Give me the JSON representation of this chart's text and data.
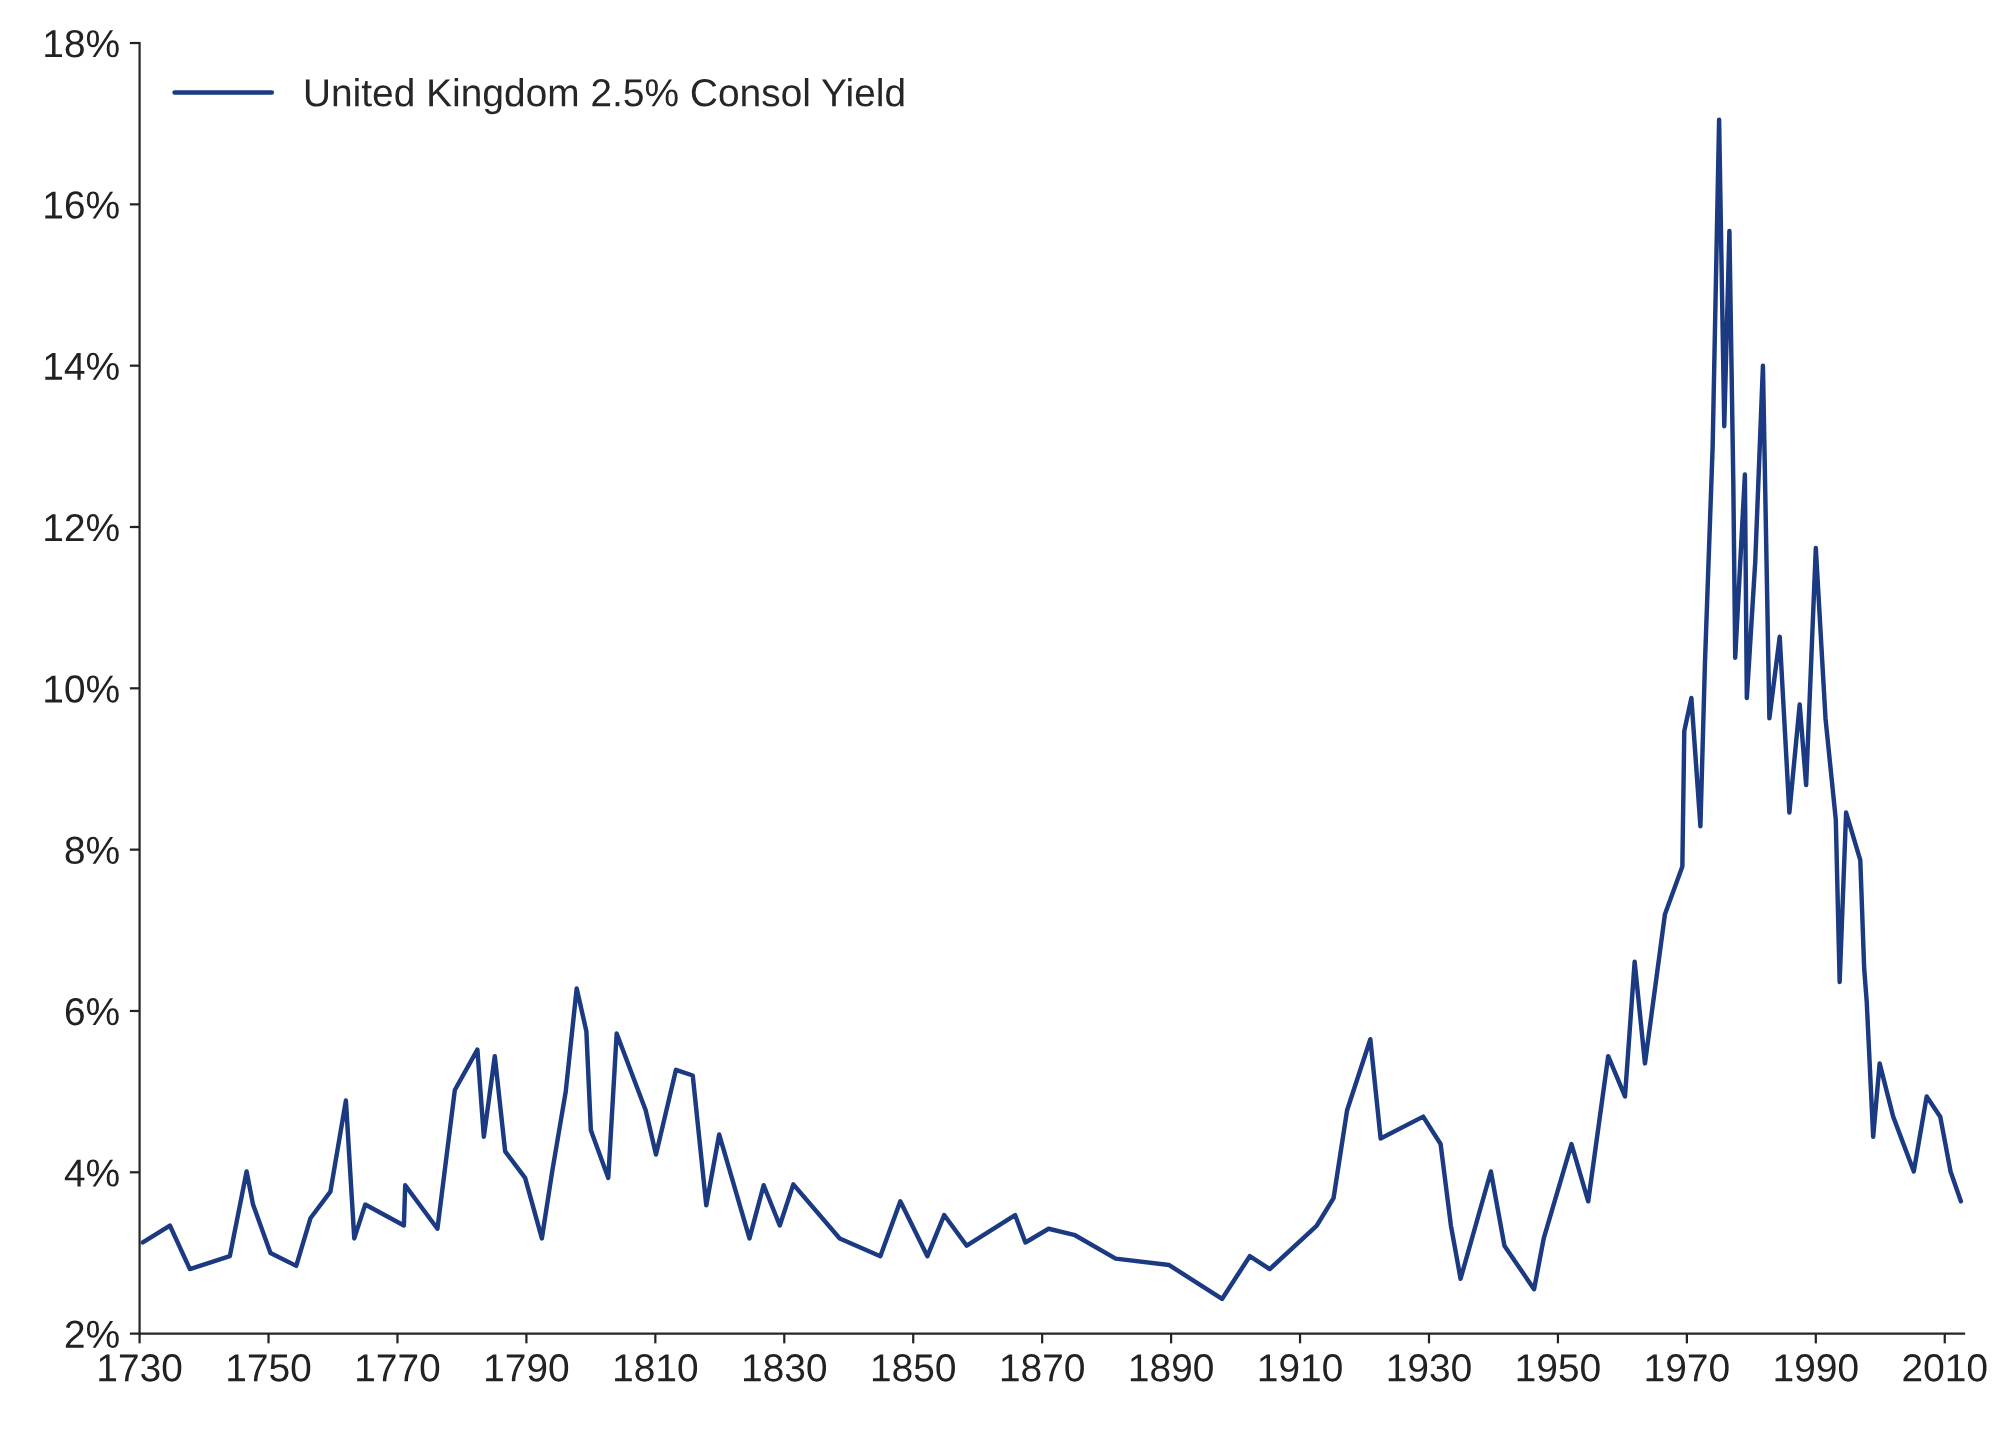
{
  "chart_data": {
    "type": "line",
    "x": [
      1730.5,
      1734.7,
      1737.8,
      1744,
      1746.6,
      1747.6,
      1750.3,
      1754.3,
      1756.5,
      1759.6,
      1762,
      1763.3,
      1765,
      1771,
      1771.2,
      1776.2,
      1778.9,
      1782.4,
      1783.4,
      1785.1,
      1786.7,
      1789.8,
      1792.4,
      1794,
      1796.1,
      1797.8,
      1799.3,
      1800,
      1802.7,
      1804,
      1808.5,
      1810.1,
      1813.2,
      1815.8,
      1817.9,
      1819.9,
      1824.6,
      1826.8,
      1829.3,
      1831.4,
      1838.6,
      1844.9,
      1848,
      1852.2,
      1854.8,
      1858.3,
      1865.8,
      1867.4,
      1871,
      1875.1,
      1881.4,
      1889.7,
      1897.9,
      1902.2,
      1905.3,
      1912.6,
      1915.2,
      1917.3,
      1920.9,
      1922.5,
      1929.1,
      1931.8,
      1933.4,
      1934.9,
      1939.6,
      1941.7,
      1946.3,
      1947.8,
      1952.1,
      1954.7,
      1957.8,
      1960.4,
      1961.9,
      1963.5,
      1966.6,
      1969.3,
      1969.6,
      1970.7,
      1972.1,
      1972.8,
      1974,
      1975,
      1975.8,
      1976.6,
      1977.2,
      1977.5,
      1979,
      1979.3,
      1980.6,
      1981.8,
      1982.8,
      1984.4,
      1985.9,
      1987.5,
      1988.5,
      1990,
      1991.5,
      1993.1,
      1993.7,
      1994.7,
      1996.9,
      1997.5,
      1997.9,
      1998.9,
      1999.9,
      2002,
      2005.2,
      2007.2,
      2009.3,
      2010.9,
      2012.5
    ],
    "series": [
      {
        "name": "United Kingdom 2.5% Consol Yield",
        "color": "#1b3a82",
        "values": [
          3.13,
          3.34,
          2.8,
          2.96,
          4.01,
          3.6,
          3.0,
          2.84,
          3.43,
          3.76,
          4.89,
          3.18,
          3.6,
          3.34,
          3.84,
          3.3,
          5.02,
          5.52,
          4.44,
          5.44,
          4.26,
          3.93,
          3.18,
          4.01,
          5.0,
          6.28,
          5.75,
          4.52,
          3.93,
          5.72,
          4.77,
          4.22,
          5.27,
          5.2,
          3.59,
          4.47,
          3.18,
          3.84,
          3.34,
          3.85,
          3.18,
          2.96,
          3.64,
          2.96,
          3.47,
          3.09,
          3.47,
          3.13,
          3.3,
          3.22,
          2.93,
          2.85,
          2.43,
          2.96,
          2.8,
          3.34,
          3.68,
          4.77,
          5.65,
          4.42,
          4.69,
          4.35,
          3.34,
          2.68,
          4.01,
          3.09,
          2.55,
          3.18,
          4.35,
          3.64,
          5.44,
          4.94,
          6.61,
          5.35,
          7.2,
          7.79,
          9.47,
          9.88,
          8.29,
          10.3,
          13.0,
          17.05,
          13.25,
          15.67,
          12.57,
          10.38,
          12.65,
          9.88,
          11.56,
          14.0,
          9.63,
          10.64,
          8.46,
          9.8,
          8.8,
          11.74,
          9.63,
          8.37,
          6.36,
          8.46,
          7.87,
          6.53,
          6.11,
          4.44,
          5.35,
          4.69,
          4.01,
          4.94,
          4.69,
          4.01,
          3.64
        ]
      }
    ],
    "xlim": [
      1730,
      2013
    ],
    "xticks": [
      1730,
      1750,
      1770,
      1790,
      1810,
      1830,
      1850,
      1870,
      1890,
      1910,
      1930,
      1950,
      1970,
      1990,
      2010
    ],
    "ylim": [
      2,
      18
    ],
    "yticks": [
      {
        "value": 2,
        "label": "2%"
      },
      {
        "value": 4,
        "label": "4%"
      },
      {
        "value": 6,
        "label": "6%"
      },
      {
        "value": 8,
        "label": "8%"
      },
      {
        "value": 10,
        "label": "10%"
      },
      {
        "value": 12,
        "label": "12%"
      },
      {
        "value": 14,
        "label": "14%"
      },
      {
        "value": 16,
        "label": "16%"
      },
      {
        "value": 18,
        "label": "18%"
      }
    ],
    "grid": false,
    "legend": "top left",
    "line_style": "solid"
  }
}
